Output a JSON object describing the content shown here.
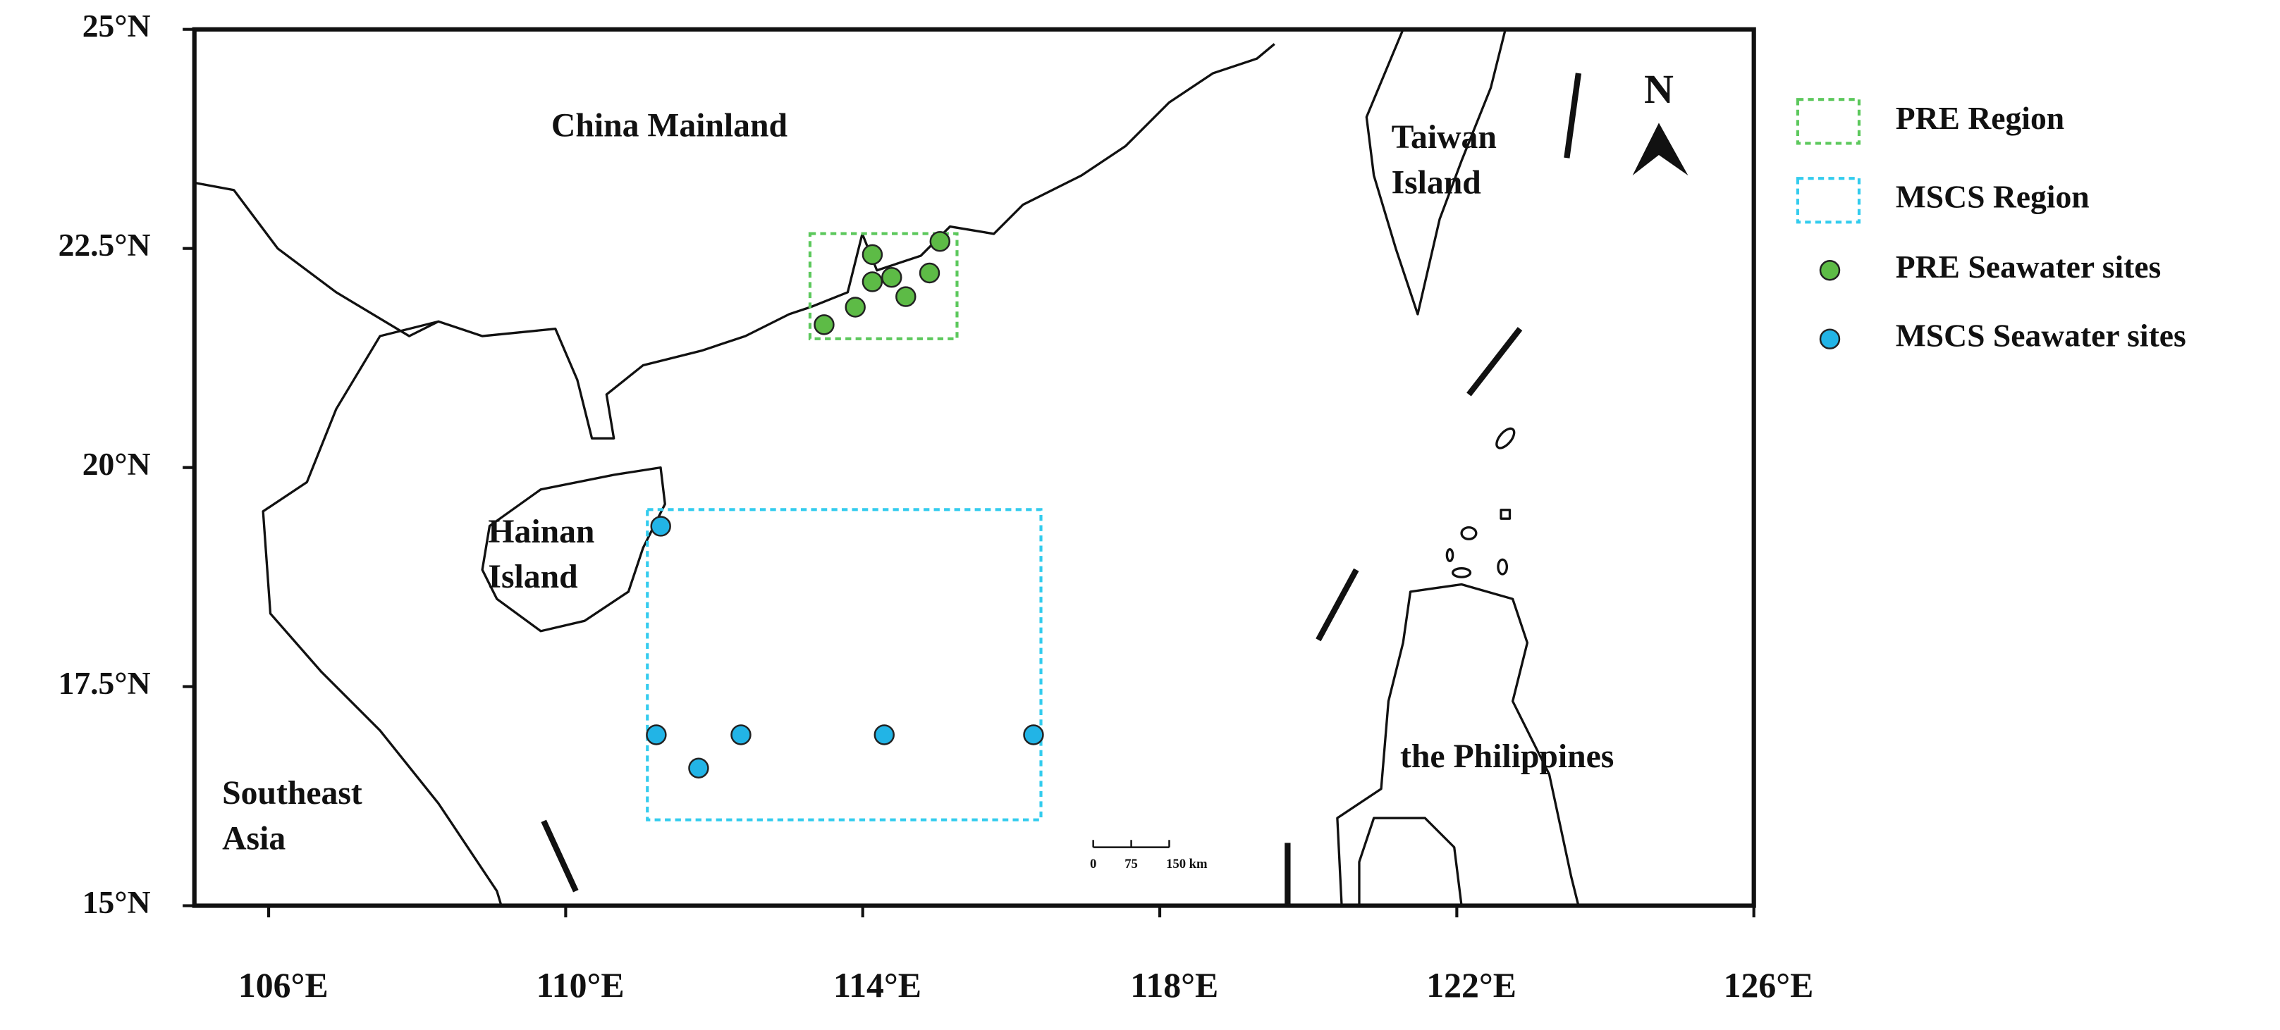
{
  "map": {
    "xlim": [
      105,
      126
    ],
    "ylim": [
      15,
      25
    ],
    "xticks": [
      {
        "value": 106,
        "label": "106°E"
      },
      {
        "value": 110,
        "label": "110°E"
      },
      {
        "value": 114,
        "label": "114°E"
      },
      {
        "value": 118,
        "label": "118°E"
      },
      {
        "value": 122,
        "label": "122°E"
      },
      {
        "value": 126,
        "label": "126°E"
      }
    ],
    "yticks": [
      {
        "value": 15,
        "label": "15°N"
      },
      {
        "value": 17.5,
        "label": "17.5°N"
      },
      {
        "value": 20,
        "label": "20°N"
      },
      {
        "value": 22.5,
        "label": "22.5°N"
      },
      {
        "value": 25,
        "label": "25°N"
      }
    ],
    "place_labels": [
      [
        "China Mainland"
      ],
      [
        "Taiwan",
        "Island"
      ],
      [
        "Hainan",
        "Island"
      ],
      [
        "Southeast",
        "Asia"
      ],
      [
        "the Philippines"
      ]
    ],
    "regions": [
      {
        "name": "PRE Region",
        "color": "#5cc85c",
        "lon": [
          113.29,
          115.27
        ],
        "lat": [
          21.47,
          22.67
        ]
      },
      {
        "name": "MSCS Region",
        "color": "#33ccee",
        "lon": [
          111.1,
          116.4
        ],
        "lat": [
          15.98,
          19.52
        ]
      }
    ],
    "site_groups": [
      {
        "name": "PRE Seawater sites",
        "color": "#5dbb46",
        "lon": [
          113.48,
          113.9,
          114.13,
          114.13,
          114.39,
          114.58,
          114.9,
          115.04
        ],
        "lat": [
          21.63,
          21.83,
          22.43,
          22.12,
          22.17,
          21.95,
          22.22,
          22.58
        ]
      },
      {
        "name": "MSCS Seawater sites",
        "color": "#22b4e6",
        "lon": [
          111.28,
          111.22,
          111.79,
          112.36,
          114.29,
          116.3
        ],
        "lat": [
          19.33,
          16.95,
          16.57,
          16.95,
          16.95,
          16.95
        ]
      }
    ],
    "scale_bar": [
      "0",
      "75",
      "150 km"
    ],
    "north": "N"
  }
}
